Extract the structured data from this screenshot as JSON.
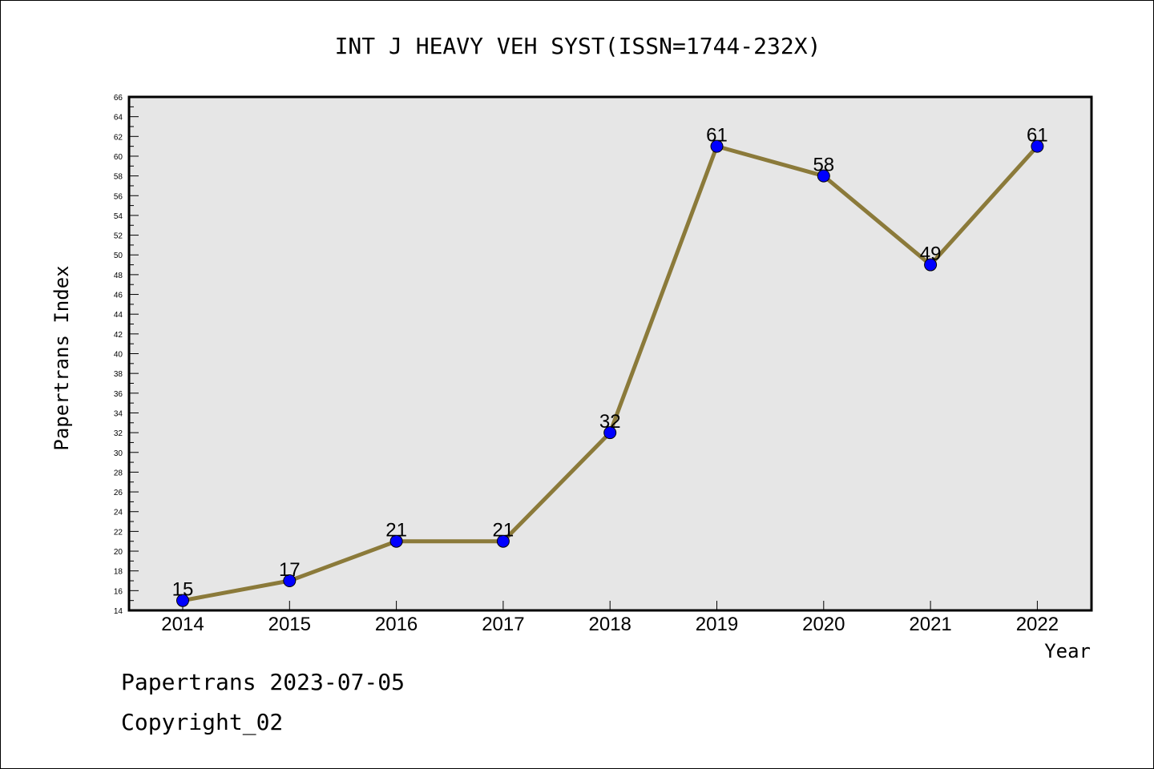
{
  "chart_data": {
    "type": "line",
    "title": "INT J HEAVY VEH SYST(ISSN=1744-232X)",
    "xlabel": "Year",
    "ylabel": "Papertrans Index",
    "categories": [
      "2014",
      "2015",
      "2016",
      "2017",
      "2018",
      "2019",
      "2020",
      "2021",
      "2022"
    ],
    "series": [
      {
        "values": [
          15,
          17,
          21,
          21,
          32,
          61,
          58,
          49,
          61
        ]
      }
    ],
    "ylim": [
      14,
      66
    ],
    "ytick_step": 2,
    "grid": false,
    "plot_background": "#e6e6e6",
    "line_color": "#8b7a3a",
    "marker_color": "#0000ff"
  },
  "footer": {
    "line1": "Papertrans 2023-07-05",
    "line2": "Copyright_02"
  }
}
